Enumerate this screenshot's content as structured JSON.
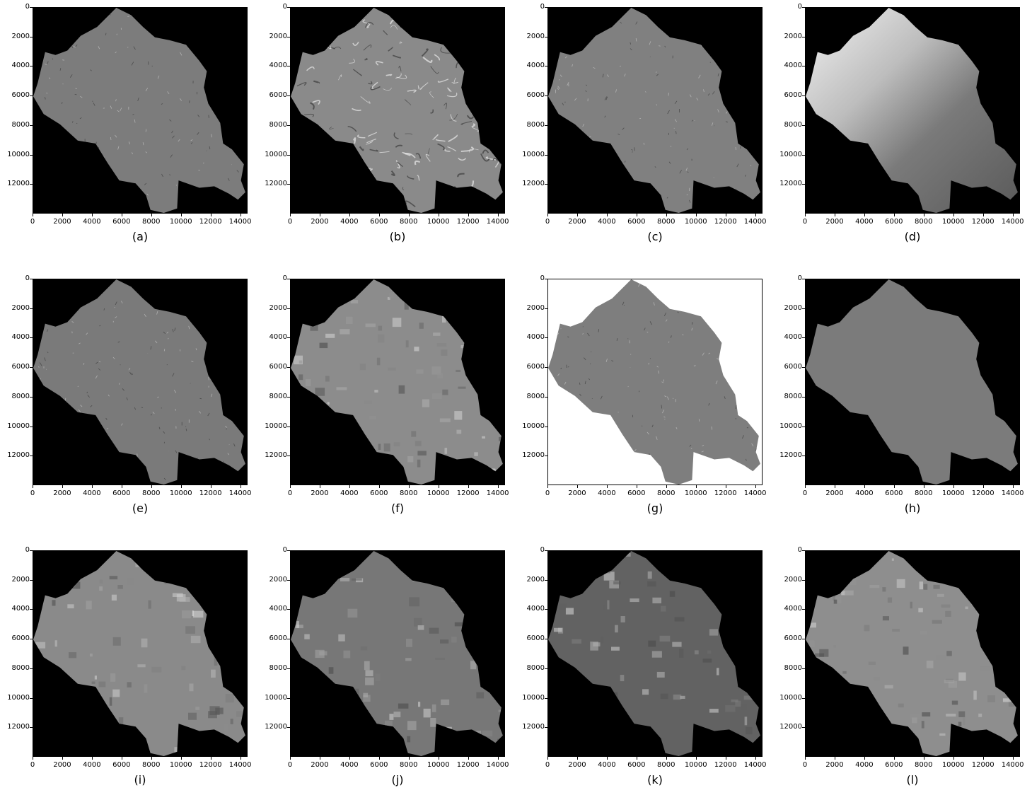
{
  "figure": {
    "x_ticks": [
      "0",
      "2000",
      "4000",
      "6000",
      "8000",
      "10000",
      "12000",
      "14000"
    ],
    "y_ticks": [
      "0",
      "2000",
      "4000",
      "6000",
      "8000",
      "10000",
      "12000"
    ],
    "panels": [
      {
        "label": "(a)",
        "style": "texture",
        "bg": "#000000",
        "fill": "#7c7c7c"
      },
      {
        "label": "(b)",
        "style": "bright",
        "bg": "#000000",
        "fill": "#8a8a8a"
      },
      {
        "label": "(c)",
        "style": "texture",
        "bg": "#000000",
        "fill": "#808080"
      },
      {
        "label": "(d)",
        "style": "dem",
        "bg": "#000000",
        "fill": "#6a6a6a"
      },
      {
        "label": "(e)",
        "style": "texture",
        "bg": "#000000",
        "fill": "#7a7a7a"
      },
      {
        "label": "(f)",
        "style": "patchy",
        "bg": "#000000",
        "fill": "#8c8c8c"
      },
      {
        "label": "(g)",
        "style": "texture",
        "bg": "#ffffff",
        "fill": "#7e7e7e"
      },
      {
        "label": "(h)",
        "style": "flat",
        "bg": "#000000",
        "fill": "#7b7b7b"
      },
      {
        "label": "(i)",
        "style": "patchy",
        "bg": "#000000",
        "fill": "#8a8a8a"
      },
      {
        "label": "(j)",
        "style": "patchy",
        "bg": "#000000",
        "fill": "#777777"
      },
      {
        "label": "(k)",
        "style": "patchy",
        "bg": "#000000",
        "fill": "#626262"
      },
      {
        "label": "(l)",
        "style": "patchy",
        "bg": "#000000",
        "fill": "#8e8e8e"
      }
    ]
  }
}
